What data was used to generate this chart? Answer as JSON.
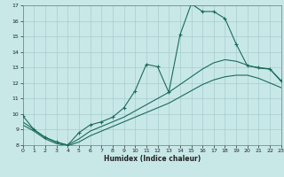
{
  "xlabel": "Humidex (Indice chaleur)",
  "bg_color": "#c8e8e8",
  "grid_color": "#a8cccc",
  "line_color": "#1a6b5a",
  "xlim": [
    0,
    23
  ],
  "ylim": [
    8,
    17
  ],
  "xticks": [
    0,
    1,
    2,
    3,
    4,
    5,
    6,
    7,
    8,
    9,
    10,
    11,
    12,
    13,
    14,
    15,
    16,
    17,
    18,
    19,
    20,
    21,
    22,
    23
  ],
  "yticks": [
    8,
    9,
    10,
    11,
    12,
    13,
    14,
    15,
    16,
    17
  ],
  "curve_main": {
    "x": [
      0,
      1,
      2,
      3,
      4,
      5,
      6,
      7,
      8,
      9,
      10,
      11,
      12,
      13,
      14,
      15,
      16,
      17,
      18,
      19,
      20,
      21,
      22,
      23
    ],
    "y": [
      9.9,
      9.0,
      8.5,
      8.2,
      8.0,
      8.8,
      9.3,
      9.5,
      9.8,
      10.4,
      11.5,
      13.2,
      13.05,
      11.4,
      15.1,
      17.1,
      16.6,
      16.6,
      16.15,
      14.5,
      13.1,
      13.0,
      12.9,
      12.15
    ]
  },
  "curve_env1": {
    "x": [
      0,
      1,
      2,
      3,
      4,
      5,
      6,
      7,
      8,
      9,
      10,
      11,
      12,
      13,
      14,
      15,
      16,
      17,
      18,
      19,
      20,
      21,
      22,
      23
    ],
    "y": [
      9.5,
      9.0,
      8.5,
      8.2,
      8.0,
      8.4,
      8.9,
      9.2,
      9.5,
      9.8,
      10.2,
      10.6,
      11.0,
      11.4,
      11.9,
      12.4,
      12.9,
      13.3,
      13.5,
      13.4,
      13.15,
      12.95,
      12.9,
      12.1
    ]
  },
  "curve_env2": {
    "x": [
      0,
      1,
      2,
      3,
      4,
      5,
      6,
      7,
      8,
      9,
      10,
      11,
      12,
      13,
      14,
      15,
      16,
      17,
      18,
      19,
      20,
      21,
      22,
      23
    ],
    "y": [
      9.3,
      8.9,
      8.4,
      8.1,
      7.95,
      8.2,
      8.6,
      8.9,
      9.2,
      9.5,
      9.8,
      10.1,
      10.4,
      10.7,
      11.1,
      11.5,
      11.9,
      12.2,
      12.4,
      12.5,
      12.5,
      12.3,
      12.0,
      11.7
    ]
  }
}
